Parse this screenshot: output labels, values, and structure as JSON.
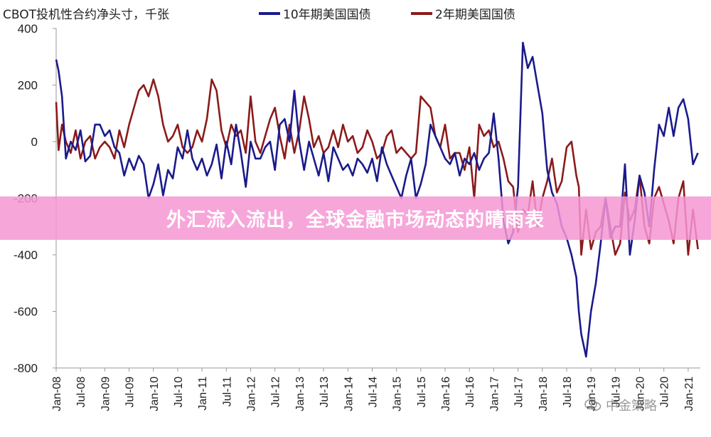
{
  "header": {
    "unit_label": "CBOT投机性合约净头寸，千张"
  },
  "banner": {
    "title": "外汇流入流出，全球金融市场动态的晴雨表"
  },
  "watermark": {
    "text": "中金策略",
    "icon": "wechat-icon"
  },
  "colors": {
    "series_10y": "#1a1a8c",
    "series_2y": "#8b1a1a",
    "axis": "#999999",
    "tick_label": "#222222",
    "banner": "#f696d4"
  },
  "chart_data": {
    "type": "line",
    "title": "",
    "xlabel": "",
    "ylabel": "CBOT投机性合约净头寸，千张",
    "ylim": [
      -800,
      400
    ],
    "y_ticks": [
      400,
      200,
      0,
      -200,
      -400,
      -600,
      -800
    ],
    "xlim": [
      2008.0,
      2021.25
    ],
    "x_tick_labels": [
      "Jan-08",
      "Jul-08",
      "Jan-09",
      "Jul-09",
      "Jan-10",
      "Jul-10",
      "Jan-11",
      "Jul-11",
      "Jan-12",
      "Jul-12",
      "Jan-13",
      "Jul-13",
      "Jan-14",
      "Jul-14",
      "Jan-15",
      "Jul-15",
      "Jan-16",
      "Jul-16",
      "Jan-17",
      "Jul-17",
      "Jan-18",
      "Jul-18",
      "Jan-19",
      "Jul-19",
      "Jan-20",
      "Jul-20",
      "Jan-21"
    ],
    "grid": false,
    "legend": "top",
    "series": [
      {
        "name": "10年期美国国债",
        "x": [
          2008.0,
          2008.05,
          2008.12,
          2008.2,
          2008.3,
          2008.4,
          2008.5,
          2008.6,
          2008.7,
          2008.8,
          2008.9,
          2009.0,
          2009.1,
          2009.2,
          2009.3,
          2009.4,
          2009.5,
          2009.6,
          2009.7,
          2009.8,
          2009.9,
          2010.0,
          2010.1,
          2010.2,
          2010.3,
          2010.4,
          2010.5,
          2010.6,
          2010.7,
          2010.8,
          2010.9,
          2011.0,
          2011.1,
          2011.2,
          2011.3,
          2011.4,
          2011.5,
          2011.6,
          2011.7,
          2011.8,
          2011.9,
          2012.0,
          2012.1,
          2012.2,
          2012.3,
          2012.4,
          2012.5,
          2012.6,
          2012.7,
          2012.8,
          2012.9,
          2013.0,
          2013.1,
          2013.2,
          2013.3,
          2013.4,
          2013.5,
          2013.6,
          2013.7,
          2013.8,
          2013.9,
          2014.0,
          2014.1,
          2014.2,
          2014.3,
          2014.4,
          2014.5,
          2014.6,
          2014.7,
          2014.8,
          2014.9,
          2015.0,
          2015.1,
          2015.2,
          2015.3,
          2015.4,
          2015.5,
          2015.6,
          2015.7,
          2015.8,
          2015.9,
          2016.0,
          2016.1,
          2016.2,
          2016.3,
          2016.4,
          2016.5,
          2016.6,
          2016.7,
          2016.8,
          2016.9,
          2017.0,
          2017.1,
          2017.2,
          2017.3,
          2017.4,
          2017.5,
          2017.6,
          2017.7,
          2017.8,
          2017.9,
          2018.0,
          2018.1,
          2018.2,
          2018.3,
          2018.4,
          2018.5,
          2018.6,
          2018.7,
          2018.75,
          2018.8,
          2018.9,
          2019.0,
          2019.1,
          2019.2,
          2019.3,
          2019.4,
          2019.5,
          2019.6,
          2019.7,
          2019.8,
          2019.9,
          2020.0,
          2020.1,
          2020.2,
          2020.3,
          2020.4,
          2020.5,
          2020.6,
          2020.7,
          2020.8,
          2020.9,
          2021.0,
          2021.1,
          2021.2
        ],
        "values": [
          290,
          250,
          160,
          -60,
          0,
          -30,
          40,
          -70,
          -50,
          60,
          60,
          20,
          40,
          -20,
          -40,
          -120,
          -60,
          -100,
          -50,
          -80,
          -200,
          -150,
          -80,
          -190,
          -100,
          -130,
          -20,
          -60,
          40,
          -60,
          -100,
          -60,
          -120,
          -80,
          -10,
          -130,
          0,
          -80,
          60,
          -40,
          -160,
          0,
          -60,
          -60,
          -20,
          0,
          -100,
          60,
          80,
          0,
          180,
          0,
          -100,
          0,
          -60,
          -120,
          -40,
          -140,
          -20,
          -60,
          -100,
          -80,
          -120,
          -60,
          -80,
          -110,
          -60,
          -140,
          -20,
          -80,
          -120,
          -160,
          -200,
          -120,
          -60,
          -200,
          -150,
          -80,
          60,
          20,
          -20,
          -60,
          -80,
          -40,
          -120,
          -60,
          -80,
          -40,
          -100,
          -60,
          -40,
          100,
          -60,
          -280,
          -360,
          -320,
          -160,
          350,
          260,
          300,
          200,
          100,
          -100,
          -180,
          -220,
          -300,
          -340,
          -400,
          -480,
          -600,
          -680,
          -760,
          -600,
          -500,
          -360,
          -200,
          -340,
          -300,
          -300,
          -80,
          -400,
          -280,
          -120,
          -180,
          -300,
          -100,
          60,
          20,
          120,
          20,
          120,
          150,
          80,
          -80,
          -40
        ]
      },
      {
        "name": "2年期美国国债",
        "x": [
          2008.0,
          2008.05,
          2008.12,
          2008.2,
          2008.3,
          2008.4,
          2008.5,
          2008.6,
          2008.7,
          2008.8,
          2008.9,
          2009.0,
          2009.1,
          2009.2,
          2009.3,
          2009.4,
          2009.5,
          2009.6,
          2009.7,
          2009.8,
          2009.9,
          2010.0,
          2010.1,
          2010.2,
          2010.3,
          2010.4,
          2010.5,
          2010.6,
          2010.7,
          2010.8,
          2010.9,
          2011.0,
          2011.1,
          2011.2,
          2011.3,
          2011.4,
          2011.5,
          2011.6,
          2011.7,
          2011.8,
          2011.9,
          2012.0,
          2012.1,
          2012.2,
          2012.3,
          2012.4,
          2012.5,
          2012.6,
          2012.7,
          2012.8,
          2012.9,
          2013.0,
          2013.1,
          2013.2,
          2013.3,
          2013.4,
          2013.5,
          2013.6,
          2013.7,
          2013.8,
          2013.9,
          2014.0,
          2014.1,
          2014.2,
          2014.3,
          2014.4,
          2014.5,
          2014.6,
          2014.7,
          2014.8,
          2014.9,
          2015.0,
          2015.1,
          2015.2,
          2015.3,
          2015.4,
          2015.5,
          2015.6,
          2015.7,
          2015.8,
          2015.9,
          2016.0,
          2016.1,
          2016.2,
          2016.3,
          2016.4,
          2016.5,
          2016.6,
          2016.7,
          2016.8,
          2016.9,
          2017.0,
          2017.1,
          2017.2,
          2017.3,
          2017.4,
          2017.5,
          2017.6,
          2017.7,
          2017.8,
          2017.9,
          2018.0,
          2018.1,
          2018.2,
          2018.3,
          2018.4,
          2018.5,
          2018.6,
          2018.7,
          2018.75,
          2018.8,
          2018.9,
          2019.0,
          2019.1,
          2019.2,
          2019.3,
          2019.4,
          2019.5,
          2019.6,
          2019.7,
          2019.8,
          2019.9,
          2020.0,
          2020.1,
          2020.2,
          2020.3,
          2020.4,
          2020.5,
          2020.6,
          2020.7,
          2020.8,
          2020.9,
          2021.0,
          2021.1,
          2021.2
        ],
        "values": [
          140,
          -30,
          60,
          0,
          -40,
          40,
          -60,
          0,
          20,
          -60,
          -20,
          0,
          -20,
          -60,
          40,
          -20,
          60,
          120,
          180,
          200,
          160,
          220,
          160,
          60,
          0,
          20,
          60,
          -20,
          -40,
          -20,
          40,
          0,
          80,
          220,
          180,
          40,
          -20,
          60,
          20,
          40,
          -40,
          160,
          0,
          -40,
          20,
          80,
          120,
          20,
          -60,
          60,
          -40,
          40,
          160,
          80,
          -20,
          20,
          -40,
          -20,
          40,
          -20,
          60,
          0,
          20,
          -40,
          -20,
          40,
          0,
          -60,
          -40,
          20,
          40,
          -40,
          -20,
          -40,
          -60,
          -40,
          160,
          140,
          120,
          20,
          -20,
          60,
          -60,
          -40,
          -40,
          -100,
          -20,
          -200,
          60,
          20,
          40,
          -20,
          0,
          -60,
          -140,
          -160,
          -320,
          -240,
          -260,
          -140,
          -300,
          -200,
          -140,
          -60,
          -180,
          -140,
          -20,
          0,
          -120,
          -160,
          -400,
          -240,
          -380,
          -320,
          -300,
          -200,
          -300,
          -400,
          -360,
          -180,
          -280,
          -240,
          -120,
          -300,
          -360,
          -200,
          -160,
          -220,
          -280,
          -360,
          -200,
          -140,
          -400,
          -240,
          -380
        ]
      }
    ]
  }
}
